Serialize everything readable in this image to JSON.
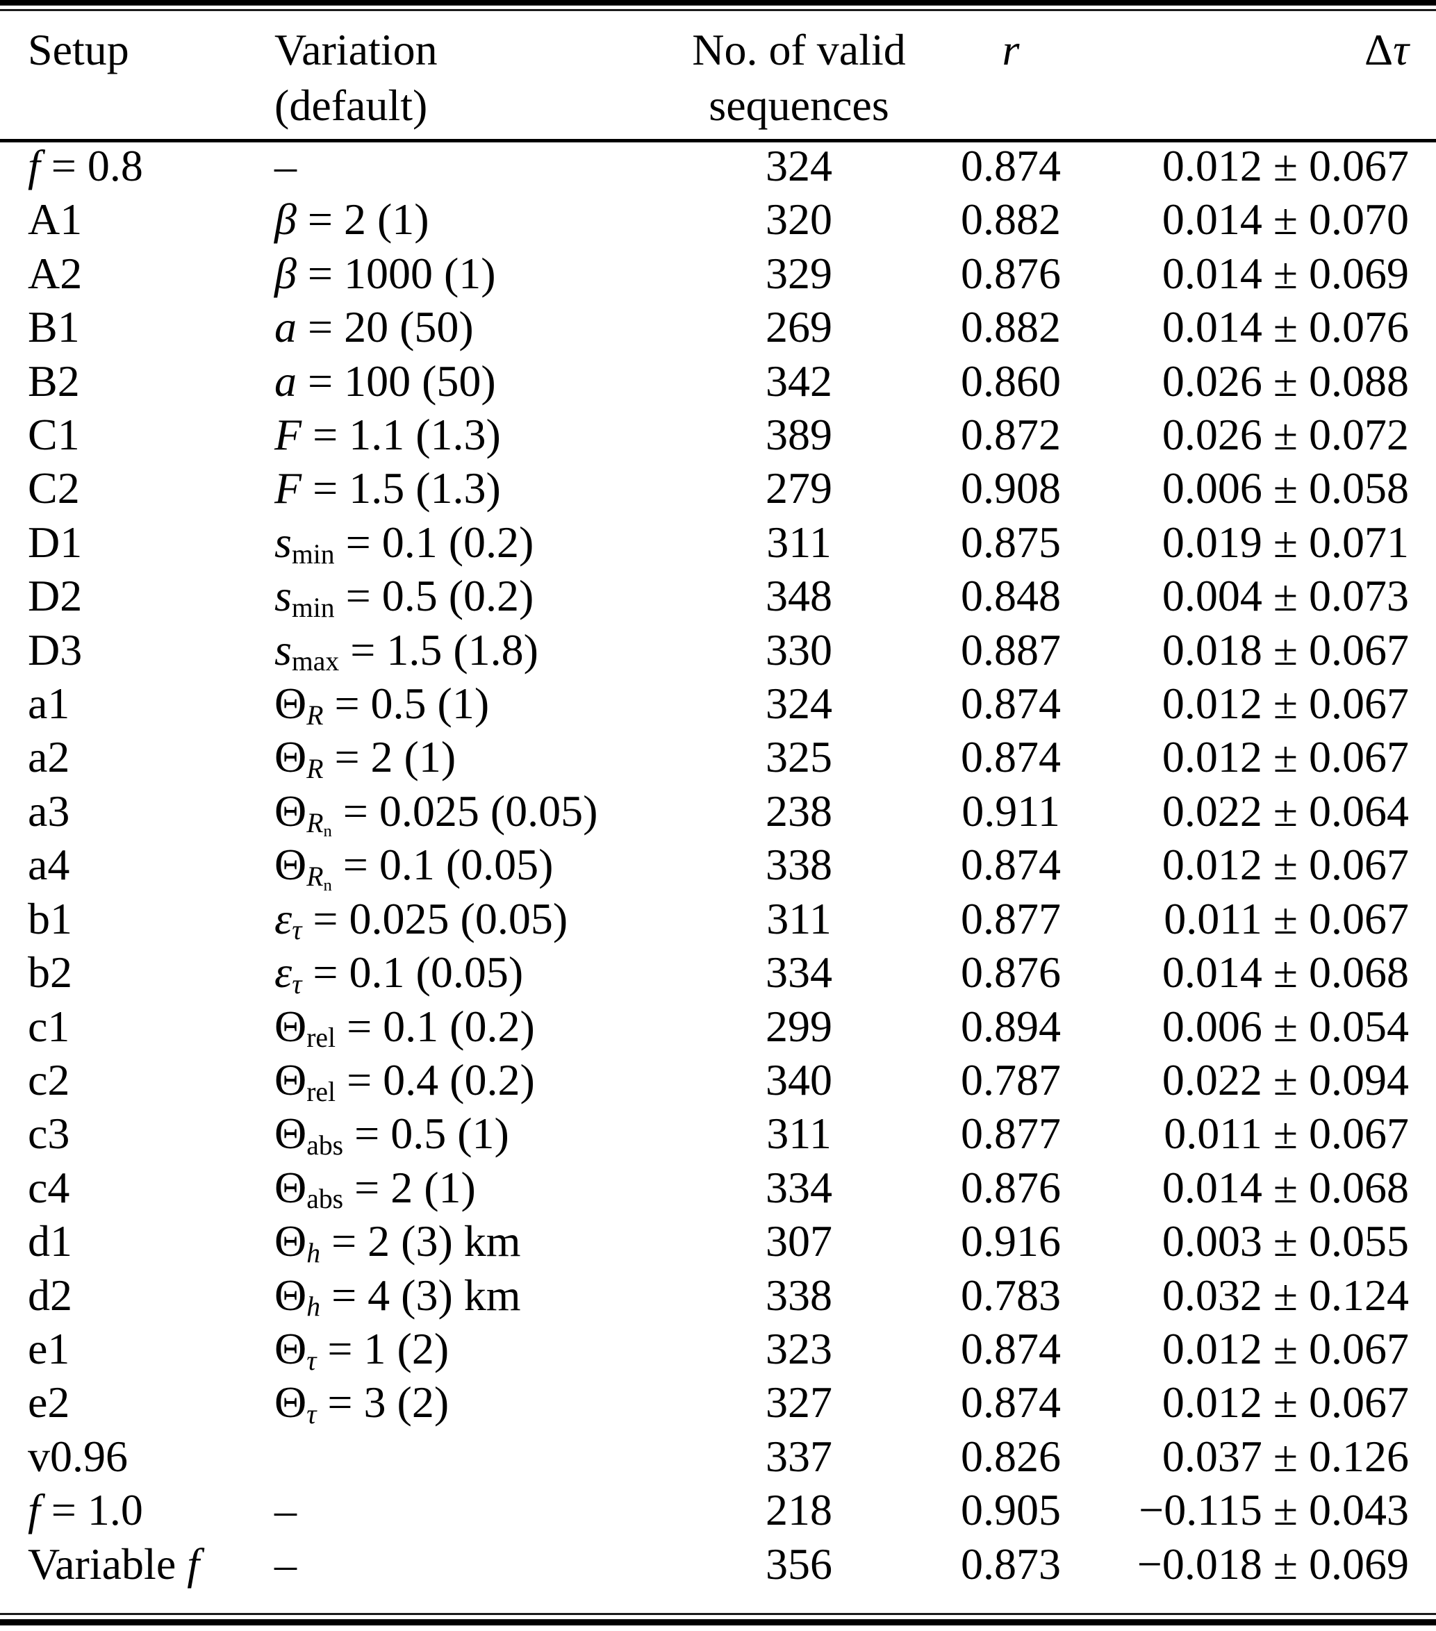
{
  "table": {
    "headers": {
      "setup": "Setup",
      "variation_line1": "Variation",
      "variation_line2": "(default)",
      "sequences_line1": "No. of valid",
      "sequences_line2": "sequences",
      "r": "r",
      "delta_tau_html": "Δ<i>τ</i>"
    },
    "rows": [
      {
        "setup_html": "<i>f</i> = 0.8",
        "variation_html": "–",
        "sequences": "324",
        "r": "0.874",
        "delta_tau": "0.012 ± 0.067"
      },
      {
        "setup_html": "A1",
        "variation_html": "<i>β</i> = 2 (1)",
        "sequences": "320",
        "r": "0.882",
        "delta_tau": "0.014 ± 0.070"
      },
      {
        "setup_html": "A2",
        "variation_html": "<i>β</i> = 1000 (1)",
        "sequences": "329",
        "r": "0.876",
        "delta_tau": "0.014 ± 0.069"
      },
      {
        "setup_html": "B1",
        "variation_html": "<i>a</i> = 20 (50)",
        "sequences": "269",
        "r": "0.882",
        "delta_tau": "0.014 ± 0.076"
      },
      {
        "setup_html": "B2",
        "variation_html": "<i>a</i> = 100 (50)",
        "sequences": "342",
        "r": "0.860",
        "delta_tau": "0.026 ± 0.088"
      },
      {
        "setup_html": "C1",
        "variation_html": "<i>F</i> = 1.1 (1.3)",
        "sequences": "389",
        "r": "0.872",
        "delta_tau": "0.026 ± 0.072"
      },
      {
        "setup_html": "C2",
        "variation_html": "<i>F</i> = 1.5 (1.3)",
        "sequences": "279",
        "r": "0.908",
        "delta_tau": "0.006 ± 0.058"
      },
      {
        "setup_html": "D1",
        "variation_html": "<i>s</i><sub>min</sub> = 0.1 (0.2)",
        "sequences": "311",
        "r": "0.875",
        "delta_tau": "0.019 ± 0.071"
      },
      {
        "setup_html": "D2",
        "variation_html": "<i>s</i><sub>min</sub> = 0.5 (0.2)",
        "sequences": "348",
        "r": "0.848",
        "delta_tau": "0.004 ± 0.073"
      },
      {
        "setup_html": "D3",
        "variation_html": "<i>s</i><sub>max</sub> = 1.5 (1.8)",
        "sequences": "330",
        "r": "0.887",
        "delta_tau": "0.018 ± 0.067"
      },
      {
        "setup_html": "a1",
        "variation_html": "Θ<sub><i>R</i></sub> = 0.5 (1)",
        "sequences": "324",
        "r": "0.874",
        "delta_tau": "0.012 ± 0.067"
      },
      {
        "setup_html": "a2",
        "variation_html": "Θ<sub><i>R</i></sub> = 2 (1)",
        "sequences": "325",
        "r": "0.874",
        "delta_tau": "0.012 ± 0.067"
      },
      {
        "setup_html": "a3",
        "variation_html": "Θ<sub><i>R</i><sub>n</sub></sub> = 0.025 (0.05)",
        "sequences": "238",
        "r": "0.911",
        "delta_tau": "0.022 ± 0.064"
      },
      {
        "setup_html": "a4",
        "variation_html": "Θ<sub><i>R</i><sub>n</sub></sub> = 0.1 (0.05)",
        "sequences": "338",
        "r": "0.874",
        "delta_tau": "0.012 ± 0.067"
      },
      {
        "setup_html": "b1",
        "variation_html": "<i>ε</i><sub><i>τ</i></sub> = 0.025 (0.05)",
        "sequences": "311",
        "r": "0.877",
        "delta_tau": "0.011 ± 0.067"
      },
      {
        "setup_html": "b2",
        "variation_html": "<i>ε</i><sub><i>τ</i></sub> = 0.1 (0.05)",
        "sequences": "334",
        "r": "0.876",
        "delta_tau": "0.014 ± 0.068"
      },
      {
        "setup_html": "c1",
        "variation_html": "Θ<sub>rel</sub> = 0.1 (0.2)",
        "sequences": "299",
        "r": "0.894",
        "delta_tau": "0.006 ± 0.054"
      },
      {
        "setup_html": "c2",
        "variation_html": "Θ<sub>rel</sub> = 0.4 (0.2)",
        "sequences": "340",
        "r": "0.787",
        "delta_tau": "0.022 ± 0.094"
      },
      {
        "setup_html": "c3",
        "variation_html": "Θ<sub>abs</sub> = 0.5 (1)",
        "sequences": "311",
        "r": "0.877",
        "delta_tau": "0.011 ± 0.067"
      },
      {
        "setup_html": "c4",
        "variation_html": "Θ<sub>abs</sub> = 2 (1)",
        "sequences": "334",
        "r": "0.876",
        "delta_tau": "0.014 ± 0.068"
      },
      {
        "setup_html": "d1",
        "variation_html": "Θ<sub><i>h</i></sub> = 2 (3) km",
        "sequences": "307",
        "r": "0.916",
        "delta_tau": "0.003 ± 0.055"
      },
      {
        "setup_html": "d2",
        "variation_html": "Θ<sub><i>h</i></sub> = 4 (3) km",
        "sequences": "338",
        "r": "0.783",
        "delta_tau": "0.032 ± 0.124"
      },
      {
        "setup_html": "e1",
        "variation_html": "Θ<sub><i>τ</i></sub> = 1 (2)",
        "sequences": "323",
        "r": "0.874",
        "delta_tau": "0.012 ± 0.067"
      },
      {
        "setup_html": "e2",
        "variation_html": "Θ<sub><i>τ</i></sub> = 3 (2)",
        "sequences": "327",
        "r": "0.874",
        "delta_tau": "0.012 ± 0.067"
      },
      {
        "setup_html": "v0.96",
        "variation_html": "",
        "sequences": "337",
        "r": "0.826",
        "delta_tau": "0.037 ± 0.126"
      },
      {
        "setup_html": "<i>f</i> = 1.0",
        "variation_html": "–",
        "sequences": "218",
        "r": "0.905",
        "delta_tau": "−0.115 ± 0.043"
      },
      {
        "setup_html": "Variable <i>f</i>",
        "variation_html": "–",
        "sequences": "356",
        "r": "0.873",
        "delta_tau": "−0.018 ± 0.069"
      }
    ]
  }
}
